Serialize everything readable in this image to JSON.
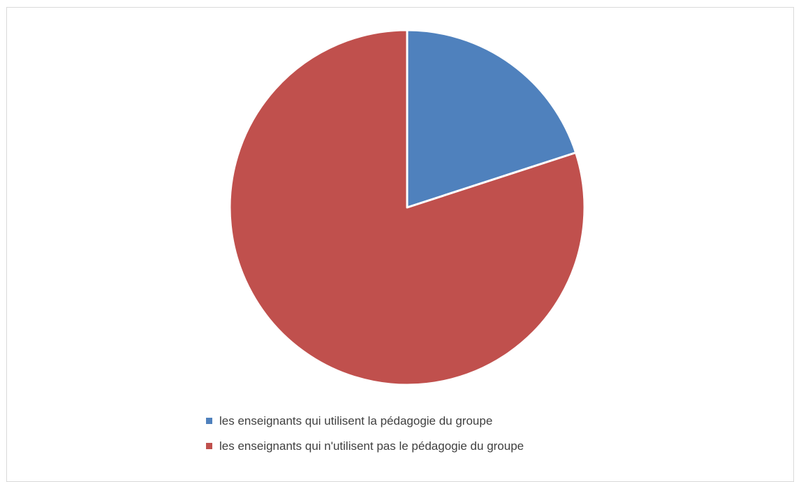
{
  "chart_data": {
    "type": "pie",
    "title": "",
    "legend_position": "bottom",
    "slices": [
      {
        "label": "les enseignants qui utilisent la pédagogie du groupe",
        "value": 20,
        "color": "#4f81bd"
      },
      {
        "label": "les enseignants qui n'utilisent pas le pédagogie du groupe",
        "value": 80,
        "color": "#c0504d"
      }
    ]
  }
}
